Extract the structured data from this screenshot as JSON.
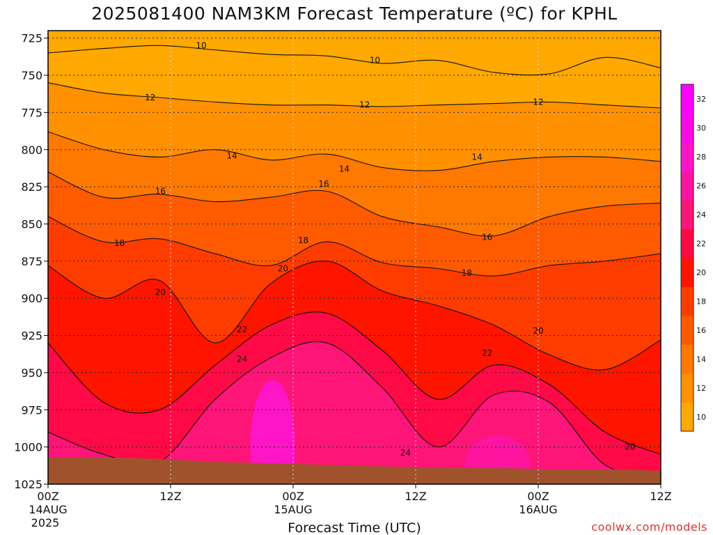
{
  "chart_data": {
    "type": "heatmap",
    "title": "2025081400 NAM3KM Forecast Temperature (ºC) for KPHL",
    "xlabel": "Forecast Time (UTC)",
    "ylabel": "",
    "credit": "coolwx.com/models",
    "x_ticks": [
      {
        "hour": 0,
        "label": "00Z",
        "date": "14AUG",
        "year": "2025"
      },
      {
        "hour": 12,
        "label": "12Z",
        "date": "",
        "year": ""
      },
      {
        "hour": 24,
        "label": "00Z",
        "date": "15AUG",
        "year": ""
      },
      {
        "hour": 36,
        "label": "12Z",
        "date": "",
        "year": ""
      },
      {
        "hour": 48,
        "label": "00Z",
        "date": "16AUG",
        "year": ""
      },
      {
        "hour": 60,
        "label": "12Z",
        "date": "",
        "year": ""
      }
    ],
    "xlim": [
      0,
      60
    ],
    "y_ticks": [
      725,
      750,
      775,
      800,
      825,
      850,
      875,
      900,
      925,
      950,
      975,
      1000,
      1025
    ],
    "ylim": [
      720,
      1025
    ],
    "y_unit": "hPa",
    "colorbar": {
      "levels": [
        10,
        12,
        14,
        16,
        18,
        20,
        22,
        24,
        26,
        28,
        30,
        32
      ],
      "colors": [
        "#ffa800",
        "#ff9000",
        "#ff7800",
        "#ff5a00",
        "#ff3c00",
        "#ff1400",
        "#ff0a46",
        "#ff1478",
        "#ff14a0",
        "#ff14c8",
        "#ff0ae6",
        "#ff00ff"
      ]
    },
    "isotherms": [
      {
        "level": 10,
        "pressure": [
          735,
          732,
          730,
          733,
          736,
          737,
          742,
          740,
          748,
          749,
          738,
          745
        ]
      },
      {
        "level": 12,
        "pressure": [
          755,
          762,
          765,
          768,
          770,
          770,
          771,
          770,
          769,
          768,
          770,
          772
        ]
      },
      {
        "level": 14,
        "pressure": [
          788,
          800,
          805,
          800,
          807,
          803,
          812,
          814,
          808,
          805,
          805,
          808
        ]
      },
      {
        "level": 16,
        "pressure": [
          815,
          832,
          830,
          835,
          832,
          828,
          845,
          852,
          858,
          845,
          838,
          836
        ]
      },
      {
        "level": 18,
        "pressure": [
          845,
          862,
          860,
          870,
          878,
          862,
          876,
          880,
          885,
          878,
          875,
          870
        ]
      },
      {
        "level": 20,
        "pressure": [
          878,
          900,
          888,
          930,
          890,
          875,
          895,
          905,
          918,
          938,
          948,
          928
        ]
      },
      {
        "level": 22,
        "pressure": [
          930,
          970,
          975,
          945,
          918,
          910,
          935,
          968,
          945,
          958,
          990,
          1005
        ]
      },
      {
        "level": 24,
        "pressure": [
          990,
          1005,
          1010,
          968,
          940,
          930,
          960,
          1000,
          965,
          970,
          1012,
          1020
        ]
      }
    ],
    "contour_labels": [
      {
        "text": "10",
        "hour": 15,
        "pressure": 730
      },
      {
        "text": "10",
        "hour": 32,
        "pressure": 740
      },
      {
        "text": "12",
        "hour": 10,
        "pressure": 765
      },
      {
        "text": "12",
        "hour": 31,
        "pressure": 770
      },
      {
        "text": "12",
        "hour": 48,
        "pressure": 768
      },
      {
        "text": "14",
        "hour": 18,
        "pressure": 804
      },
      {
        "text": "14",
        "hour": 29,
        "pressure": 813
      },
      {
        "text": "14",
        "hour": 42,
        "pressure": 805
      },
      {
        "text": "16",
        "hour": 11,
        "pressure": 828
      },
      {
        "text": "16",
        "hour": 27,
        "pressure": 823
      },
      {
        "text": "16",
        "hour": 43,
        "pressure": 859
      },
      {
        "text": "18",
        "hour": 7,
        "pressure": 863
      },
      {
        "text": "18",
        "hour": 25,
        "pressure": 861
      },
      {
        "text": "18",
        "hour": 41,
        "pressure": 883
      },
      {
        "text": "20",
        "hour": 11,
        "pressure": 896
      },
      {
        "text": "20",
        "hour": 23,
        "pressure": 880
      },
      {
        "text": "20",
        "hour": 48,
        "pressure": 922
      },
      {
        "text": "20",
        "hour": 57,
        "pressure": 1000
      },
      {
        "text": "22",
        "hour": 19,
        "pressure": 921
      },
      {
        "text": "22",
        "hour": 43,
        "pressure": 937
      },
      {
        "text": "24",
        "hour": 19,
        "pressure": 941
      },
      {
        "text": "24",
        "hour": 35,
        "pressure": 1004
      }
    ],
    "ground_surface": {
      "color": "#a0522d",
      "pressure": [
        1007,
        1007,
        1008,
        1010,
        1011,
        1012,
        1013,
        1014,
        1014,
        1015,
        1015,
        1016
      ]
    }
  }
}
